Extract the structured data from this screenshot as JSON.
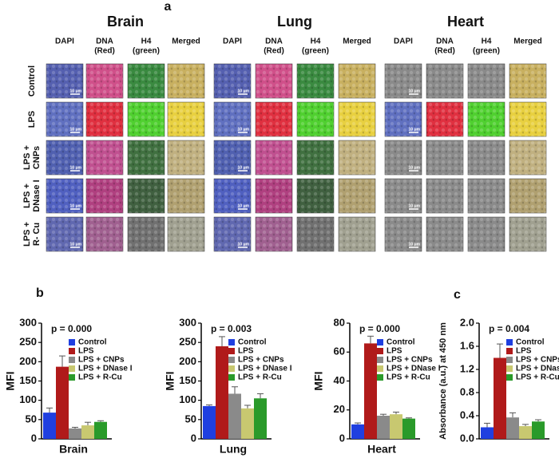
{
  "figure": {
    "panel_a_label": "a",
    "organs": [
      "Brain",
      "Lung",
      "Heart"
    ],
    "column_headers": [
      [
        "DAPI"
      ],
      [
        "DNA",
        "(Red)"
      ],
      [
        "H4",
        "(green)"
      ],
      [
        "Merged"
      ]
    ],
    "row_labels": [
      [
        "Control"
      ],
      [
        "LPS"
      ],
      [
        "LPS +",
        "CNPs"
      ],
      [
        "LPS +",
        "DNase I"
      ],
      [
        "LPS +",
        "R- Cu"
      ]
    ],
    "scale_label": "10 μm",
    "panel_b_label": "b",
    "panel_c_label": "c"
  },
  "chart_data": [
    {
      "type": "bar",
      "annotation": "p = 0.000",
      "ylabel": "MFI",
      "xlabel": "Brain",
      "categories": [
        "Control",
        "LPS",
        "LPS + CNPs",
        "LPS + DNase I",
        "LPS + R-Cu"
      ],
      "colors": [
        "#1f3fe0",
        "#b01a1a",
        "#8a8a8a",
        "#c8c870",
        "#2a9a2a"
      ],
      "values": [
        68,
        187,
        27,
        35,
        44
      ],
      "errors": [
        12,
        28,
        3,
        8,
        3
      ],
      "ylim": [
        0,
        300
      ],
      "yticks": [
        0,
        50,
        100,
        150,
        200,
        250,
        300
      ]
    },
    {
      "type": "bar",
      "annotation": "p = 0.003",
      "ylabel": "MFI",
      "xlabel": "Lung",
      "categories": [
        "Control",
        "LPS",
        "LPS + CNPs",
        "LPS + DNase I",
        "LPS + R-Cu"
      ],
      "colors": [
        "#1f3fe0",
        "#b01a1a",
        "#8a8a8a",
        "#c8c870",
        "#2a9a2a"
      ],
      "values": [
        85,
        240,
        117,
        79,
        105
      ],
      "errors": [
        3,
        25,
        18,
        8,
        12
      ],
      "ylim": [
        0,
        300
      ],
      "yticks": [
        0,
        50,
        100,
        150,
        200,
        250,
        300
      ]
    },
    {
      "type": "bar",
      "annotation": "p = 0.000",
      "ylabel": "MFI",
      "xlabel": "Heart",
      "categories": [
        "Control",
        "LPS",
        "LPS + CNPs",
        "LPS + DNase I",
        "LPS + R-Cu"
      ],
      "colors": [
        "#1f3fe0",
        "#b01a1a",
        "#8a8a8a",
        "#c8c870",
        "#2a9a2a"
      ],
      "values": [
        10,
        66,
        16,
        17,
        14
      ],
      "errors": [
        1,
        5,
        1,
        1.5,
        0.5
      ],
      "ylim": [
        0,
        80
      ],
      "yticks": [
        0,
        20,
        40,
        60,
        80
      ]
    },
    {
      "type": "bar",
      "annotation": "p = 0.004",
      "ylabel": "Absorbance (a.u.) at 450 nm",
      "categories": [
        "Control",
        "LPS",
        "LPS + CNPs",
        "LPS + DNase I",
        "LPS + R-Cu"
      ],
      "colors": [
        "#1f3fe0",
        "#b01a1a",
        "#8a8a8a",
        "#c8c870",
        "#2a9a2a"
      ],
      "values": [
        0.2,
        1.4,
        0.37,
        0.22,
        0.3
      ],
      "errors": [
        0.07,
        0.24,
        0.08,
        0.03,
        0.03
      ],
      "ylim": [
        0,
        2.0
      ],
      "yticks": [
        {
          "value": 0,
          "label": "0.0"
        },
        {
          "value": 0.4,
          "label": "0.4"
        },
        {
          "value": 0.8,
          "label": "0.8"
        },
        {
          "value": 1.2,
          "label": "1.2"
        },
        {
          "value": 1.6,
          "label": "1.6"
        },
        {
          "value": 2.0,
          "label": "2.0"
        }
      ]
    }
  ]
}
